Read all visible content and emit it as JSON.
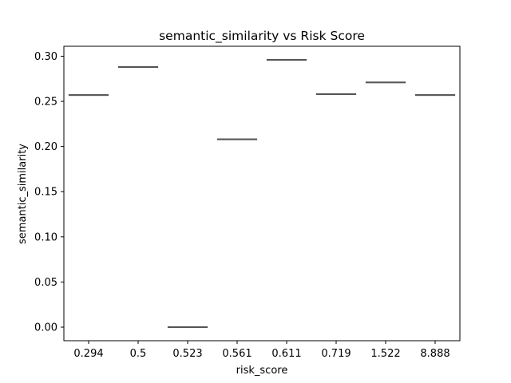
{
  "chart_data": {
    "type": "box",
    "title": "semantic_similarity vs Risk Score",
    "xlabel": "risk_score",
    "ylabel": "semantic_similarity",
    "categories": [
      "0.294",
      "0.5",
      "0.523",
      "0.561",
      "0.611",
      "0.719",
      "1.522",
      "8.888"
    ],
    "values": [
      0.257,
      0.288,
      0.0,
      0.208,
      0.296,
      0.258,
      0.271,
      0.257
    ],
    "ylim": [
      -0.015,
      0.311
    ],
    "yticks": [
      0.0,
      0.05,
      0.1,
      0.15,
      0.2,
      0.25,
      0.3
    ],
    "ytick_labels": [
      "0.00",
      "0.05",
      "0.10",
      "0.15",
      "0.20",
      "0.25",
      "0.30"
    ],
    "grid": false,
    "box_color": "#555555"
  }
}
